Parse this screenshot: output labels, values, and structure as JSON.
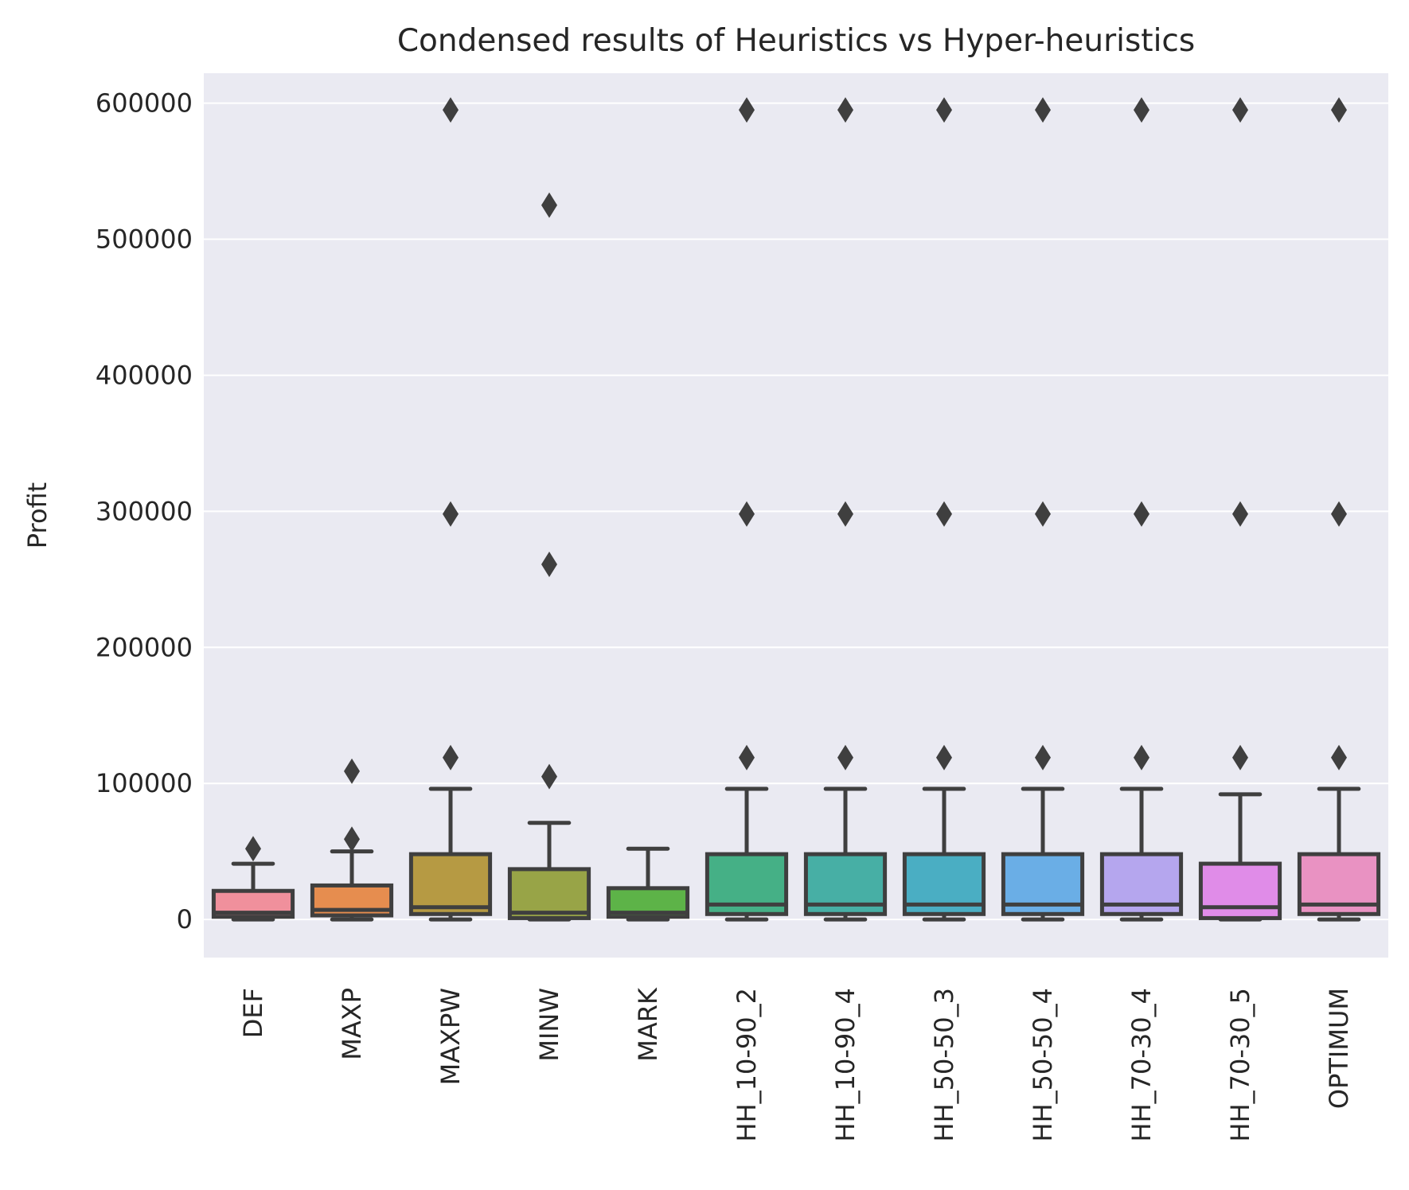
{
  "chart_data": {
    "type": "box",
    "title": "Condensed results of Heuristics vs Hyper-heuristics",
    "xlabel": "",
    "ylabel": "Profit",
    "ylim": [
      -28000,
      622000
    ],
    "yticks": [
      0,
      100000,
      200000,
      300000,
      400000,
      500000,
      600000
    ],
    "ytick_labels": [
      "0",
      "100000",
      "200000",
      "300000",
      "400000",
      "500000",
      "600000"
    ],
    "grid": true,
    "legend": "none",
    "categories": [
      "DEF",
      "MAXP",
      "MAXPW",
      "MINW",
      "MARK",
      "HH_10-90_2",
      "HH_10-90_4",
      "HH_50-50_3",
      "HH_50-50_4",
      "HH_70-30_4",
      "HH_70-30_5",
      "OPTIMUM"
    ],
    "boxes": [
      {
        "category": "DEF",
        "color": "#f0909c",
        "whislo": 0,
        "q1": 2000,
        "med": 5000,
        "q3": 21000,
        "whishi": 41000,
        "fliers": [
          52000
        ]
      },
      {
        "category": "MAXP",
        "color": "#e68d4f",
        "whislo": 0,
        "q1": 3000,
        "med": 7000,
        "q3": 25000,
        "whishi": 50000,
        "fliers": [
          59000,
          109000
        ]
      },
      {
        "category": "MAXPW",
        "color": "#b69a43",
        "whislo": 0,
        "q1": 4000,
        "med": 9000,
        "q3": 48000,
        "whishi": 96000,
        "fliers": [
          119000,
          298000,
          595000
        ]
      },
      {
        "category": "MINW",
        "color": "#98a447",
        "whislo": 0,
        "q1": 1000,
        "med": 5000,
        "q3": 37000,
        "whishi": 71000,
        "fliers": [
          105000,
          261000,
          525000
        ]
      },
      {
        "category": "MARK",
        "color": "#5db348",
        "whislo": 0,
        "q1": 2000,
        "med": 5000,
        "q3": 23000,
        "whishi": 52000,
        "fliers": []
      },
      {
        "category": "HH_10-90_2",
        "color": "#45b086",
        "whislo": 0,
        "q1": 4000,
        "med": 11000,
        "q3": 48000,
        "whishi": 96000,
        "fliers": [
          119000,
          298000,
          595000
        ]
      },
      {
        "category": "HH_10-90_4",
        "color": "#47afa5",
        "whislo": 0,
        "q1": 4000,
        "med": 11000,
        "q3": 48000,
        "whishi": 96000,
        "fliers": [
          119000,
          298000,
          595000
        ]
      },
      {
        "category": "HH_50-50_3",
        "color": "#4aaec3",
        "whislo": 0,
        "q1": 4000,
        "med": 11000,
        "q3": 48000,
        "whishi": 96000,
        "fliers": [
          119000,
          298000,
          595000
        ]
      },
      {
        "category": "HH_50-50_4",
        "color": "#6aaee6",
        "whislo": 0,
        "q1": 4000,
        "med": 11000,
        "q3": 48000,
        "whishi": 96000,
        "fliers": [
          119000,
          298000,
          595000
        ]
      },
      {
        "category": "HH_70-30_4",
        "color": "#b5a6ee",
        "whislo": 0,
        "q1": 4000,
        "med": 11000,
        "q3": 48000,
        "whishi": 96000,
        "fliers": [
          119000,
          298000,
          595000
        ]
      },
      {
        "category": "HH_70-30_5",
        "color": "#e08ce8",
        "whislo": 0,
        "q1": 1000,
        "med": 9000,
        "q3": 41000,
        "whishi": 92000,
        "fliers": [
          119000,
          298000,
          595000
        ]
      },
      {
        "category": "OPTIMUM",
        "color": "#e992c2",
        "whislo": 0,
        "q1": 4000,
        "med": 11000,
        "q3": 48000,
        "whishi": 96000,
        "fliers": [
          119000,
          298000,
          595000
        ]
      }
    ],
    "colors": {
      "plot_background": "#eaeaf2",
      "grid": "#ffffff",
      "box_edge": "#3f3f3f",
      "text": "#262626"
    }
  }
}
